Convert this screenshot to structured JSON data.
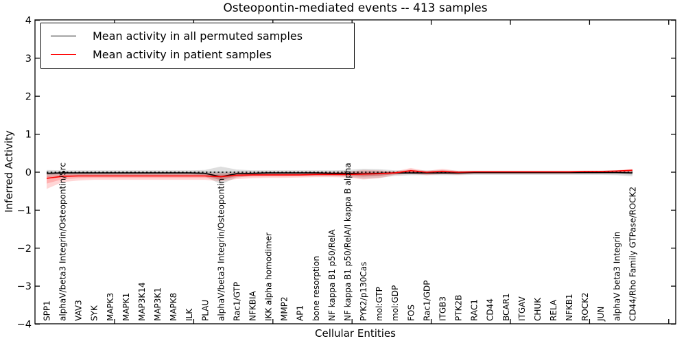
{
  "figure": {
    "title": "Osteopontin-mediated events -- 413 samples",
    "xlabel": "Cellular Entities",
    "ylabel": "Inferred Activity"
  },
  "legend": {
    "entries": [
      {
        "label": "Mean activity in all permuted samples",
        "color": "#000000"
      },
      {
        "label": "Mean activity in patient samples",
        "color": "#ff0000"
      }
    ]
  },
  "chart_data": {
    "type": "line",
    "title": "Osteopontin-mediated events -- 413 samples",
    "xlabel": "Cellular Entities",
    "ylabel": "Inferred Activity",
    "ylim": [
      -4,
      4
    ],
    "yticks": [
      -4,
      -3,
      -2,
      -1,
      0,
      1,
      2,
      3,
      4
    ],
    "x_tick_rotation": 90,
    "grid": false,
    "legend_position": "upper left",
    "categories": [
      "SPP1",
      "alphaV/beta3 Integrin/Osteopontin/Src",
      "VAV3",
      "SYK",
      "MAPK3",
      "MAPK1",
      "MAP3K14",
      "MAP3K1",
      "MAPK8",
      "ILK",
      "PLAU",
      "alphaV/beta3 Integrin/Osteopontin",
      "Rac1/GTP",
      "NFKBIA",
      "IKK alpha homodimer",
      "MMP2",
      "AP1",
      "bone resorption",
      "NF kappa B1 p50/RelA",
      "NF kappa B1 p50/RelA/I kappa B alpha",
      "PYK2/p130Cas",
      "mol:GTP",
      "mol:GDP",
      "FOS",
      "Rac1/GDP",
      "ITGB3",
      "PTK2B",
      "RAC1",
      "CD44",
      "BCAR1",
      "ITGAV",
      "CHUK",
      "RELA",
      "NFKB1",
      "ROCK2",
      "JUN",
      "alphaV beta3 Integrin",
      "CD44/Rho Family GTPase/ROCK2"
    ],
    "series": [
      {
        "name": "Mean activity in all permuted samples",
        "color": "#000000",
        "values": [
          -0.03,
          -0.02,
          -0.02,
          -0.02,
          -0.02,
          -0.02,
          -0.02,
          -0.02,
          -0.02,
          -0.02,
          -0.03,
          -0.12,
          -0.04,
          -0.03,
          -0.02,
          -0.02,
          -0.02,
          -0.02,
          -0.03,
          -0.03,
          -0.04,
          -0.03,
          -0.02,
          -0.02,
          -0.02,
          -0.02,
          -0.02,
          -0.01,
          -0.01,
          -0.01,
          -0.01,
          -0.01,
          -0.01,
          -0.01,
          -0.01,
          -0.01,
          -0.01,
          -0.02
        ]
      },
      {
        "name": "Mean activity in patient samples",
        "color": "#ff0000",
        "values": [
          -0.16,
          -0.11,
          -0.1,
          -0.1,
          -0.1,
          -0.1,
          -0.1,
          -0.1,
          -0.1,
          -0.1,
          -0.1,
          -0.12,
          -0.08,
          -0.07,
          -0.07,
          -0.07,
          -0.07,
          -0.06,
          -0.06,
          -0.06,
          -0.05,
          -0.04,
          -0.02,
          0.04,
          0.0,
          0.02,
          0.0,
          0.01,
          0.01,
          0.01,
          0.01,
          0.01,
          0.01,
          0.01,
          0.02,
          0.02,
          0.03,
          0.05
        ]
      }
    ],
    "bands": [
      {
        "name": "permuted-samples-spread",
        "color": "#000000",
        "opacity": 0.13,
        "upper": [
          0.06,
          0.05,
          0.05,
          0.05,
          0.05,
          0.05,
          0.05,
          0.05,
          0.05,
          0.05,
          0.06,
          0.15,
          0.07,
          0.05,
          0.05,
          0.05,
          0.05,
          0.05,
          0.05,
          0.06,
          0.09,
          0.08,
          0.05,
          0.05,
          0.05,
          0.05,
          0.04,
          0.04,
          0.04,
          0.04,
          0.04,
          0.04,
          0.04,
          0.04,
          0.04,
          0.04,
          0.05,
          0.06
        ],
        "lower": [
          -0.13,
          -0.1,
          -0.1,
          -0.1,
          -0.1,
          -0.1,
          -0.1,
          -0.1,
          -0.1,
          -0.1,
          -0.11,
          -0.32,
          -0.14,
          -0.1,
          -0.1,
          -0.1,
          -0.1,
          -0.1,
          -0.1,
          -0.12,
          -0.17,
          -0.15,
          -0.1,
          -0.08,
          -0.08,
          -0.08,
          -0.08,
          -0.07,
          -0.07,
          -0.07,
          -0.07,
          -0.07,
          -0.07,
          -0.07,
          -0.07,
          -0.07,
          -0.08,
          -0.11
        ]
      },
      {
        "name": "patient-samples-spread",
        "color": "#ff0000",
        "opacity": 0.16,
        "upper": [
          -0.04,
          -0.03,
          -0.02,
          -0.02,
          -0.02,
          -0.02,
          -0.02,
          -0.02,
          -0.02,
          -0.02,
          -0.02,
          -0.03,
          -0.01,
          -0.01,
          -0.01,
          -0.01,
          -0.01,
          0.0,
          0.0,
          0.01,
          0.06,
          0.05,
          0.02,
          0.11,
          0.03,
          0.09,
          0.03,
          0.03,
          0.03,
          0.03,
          0.03,
          0.03,
          0.03,
          0.03,
          0.04,
          0.04,
          0.05,
          0.09
        ],
        "lower": [
          -0.44,
          -0.26,
          -0.22,
          -0.2,
          -0.2,
          -0.2,
          -0.2,
          -0.2,
          -0.2,
          -0.2,
          -0.2,
          -0.24,
          -0.18,
          -0.16,
          -0.15,
          -0.15,
          -0.14,
          -0.13,
          -0.13,
          -0.14,
          -0.19,
          -0.16,
          -0.07,
          -0.04,
          -0.08,
          -0.05,
          -0.07,
          -0.04,
          -0.04,
          -0.04,
          -0.04,
          -0.04,
          -0.04,
          -0.04,
          -0.03,
          -0.03,
          -0.02,
          -0.01
        ]
      }
    ],
    "zero_line": {
      "y": 0,
      "style": "dotted",
      "color": "#000000"
    }
  }
}
